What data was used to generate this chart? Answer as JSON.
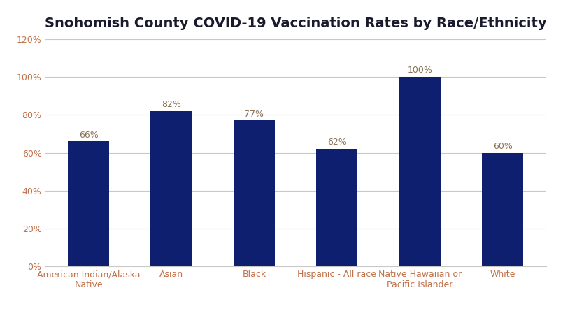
{
  "title": "Snohomish County COVID-19 Vaccination Rates by Race/Ethnicity",
  "categories": [
    "American Indian/Alaska\nNative",
    "Asian",
    "Black",
    "Hispanic - All race",
    "Native Hawaiian or\nPacific Islander",
    "White"
  ],
  "values": [
    0.66,
    0.82,
    0.77,
    0.62,
    1.0,
    0.6
  ],
  "labels": [
    "66%",
    "82%",
    "77%",
    "62%",
    "100%",
    "60%"
  ],
  "bar_color": "#0d1f6e",
  "label_color": "#8b7355",
  "tick_color": "#c0714a",
  "background_color": "#ffffff",
  "ylim": [
    0,
    1.2
  ],
  "yticks": [
    0,
    0.2,
    0.4,
    0.6,
    0.8,
    1.0,
    1.2
  ],
  "ytick_labels": [
    "0%",
    "20%",
    "40%",
    "60%",
    "80%",
    "100%",
    "120%"
  ],
  "title_fontsize": 14,
  "label_fontsize": 9,
  "tick_fontsize": 9,
  "grid_color": "#c8c8c8",
  "bar_width": 0.5
}
